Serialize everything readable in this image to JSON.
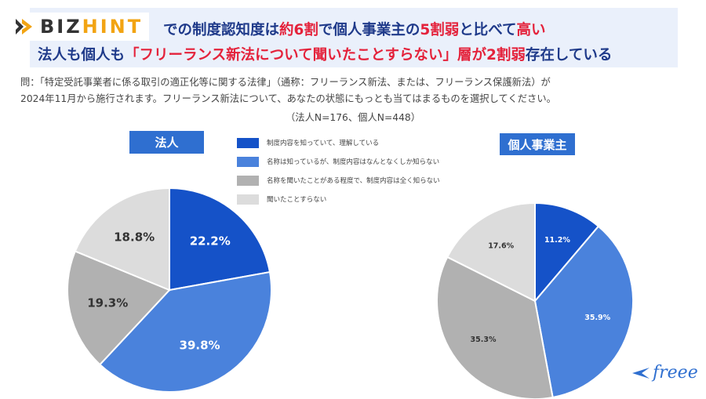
{
  "header": {
    "title_line1_parts": [
      "での制度認知度は",
      "約6割",
      "で個人事業主の",
      "5割弱",
      "と比べて",
      "高い"
    ],
    "title_line2_parts": [
      "法人も個人も",
      "「フリーランス新法について聞いたことすらない」層が2割弱",
      "存在している"
    ]
  },
  "logo": {
    "text_main": "BIZ",
    "text_accent": "HINT",
    "icon": "bizhint-logo-icon"
  },
  "question": {
    "line1": "問：「特定受託事業者に係る取引の適正化等に関する法律」（通称：フリーランス新法、または、フリーランス保護新法）が",
    "line2": "2024年11月から施行されます。フリーランス新法について、あなたの状態にもっとも当てはまるものを選択してください。",
    "sample": "（法人N=176、個人N=448）"
  },
  "legend": [
    {
      "label": "制度内容を知っていて、理解している",
      "color": "#1552c8"
    },
    {
      "label": "名称は知っているが、制度内容はなんとなくしか知らない",
      "color": "#4a82dc"
    },
    {
      "label": "名称を聞いたことがある程度で、制度内容は全く知らない",
      "color": "#b1b1b1"
    },
    {
      "label": "聞いたことすらない",
      "color": "#dcdcdc"
    }
  ],
  "chart_data": [
    {
      "type": "pie",
      "title": "法人",
      "categories": [
        "制度内容を知っていて、理解している",
        "名称は知っているが、制度内容はなんとなくしか知らない",
        "名称を聞いたことがある程度で、制度内容は全く知らない",
        "聞いたことすらない"
      ],
      "values": [
        22.2,
        39.8,
        19.3,
        18.8
      ],
      "labels": [
        "22.2%",
        "39.8%",
        "19.3%",
        "18.8%"
      ],
      "colors": [
        "#1552c8",
        "#4a82dc",
        "#b1b1b1",
        "#dcdcdc"
      ]
    },
    {
      "type": "pie",
      "title": "個人事業主",
      "categories": [
        "制度内容を知っていて、理解している",
        "名称は知っているが、制度内容はなんとなくしか知らない",
        "名称を聞いたことがある程度で、制度内容は全く知らない",
        "聞いたことすらない"
      ],
      "values": [
        11.2,
        35.9,
        35.3,
        17.6
      ],
      "labels": [
        "11.2%",
        "35.9%",
        "35.3%",
        "17.6%"
      ],
      "colors": [
        "#1552c8",
        "#4a82dc",
        "#b1b1b1",
        "#dcdcdc"
      ]
    }
  ],
  "brand": {
    "text": "freee",
    "icon": "freee-bird-icon"
  }
}
